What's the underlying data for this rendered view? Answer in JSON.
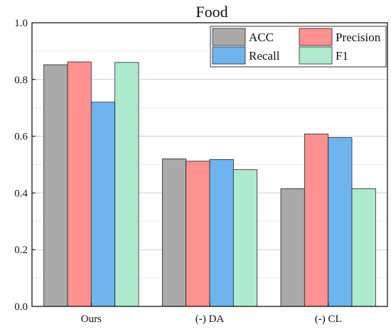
{
  "chart_data": {
    "type": "bar",
    "title": "Food",
    "xlabel": "",
    "ylabel": "",
    "categories": [
      "Ours",
      "(-) DA",
      "(-) CL"
    ],
    "ylim": [
      0,
      1.0
    ],
    "yticks": [
      "0.0",
      "0.2",
      "0.4",
      "0.6",
      "0.8",
      "1.0"
    ],
    "grid": true,
    "legend_position": "top-right",
    "series": [
      {
        "name": "ACC",
        "color": "#aaaaaa",
        "values": [
          0.852,
          0.52,
          0.415
        ]
      },
      {
        "name": "Precision",
        "color": "#ff9191",
        "values": [
          0.862,
          0.512,
          0.608
        ]
      },
      {
        "name": "Recall",
        "color": "#6eb4f0",
        "values": [
          0.72,
          0.518,
          0.595
        ]
      },
      {
        "name": "F1",
        "color": "#aeeacf",
        "values": [
          0.86,
          0.482,
          0.415
        ]
      }
    ]
  }
}
